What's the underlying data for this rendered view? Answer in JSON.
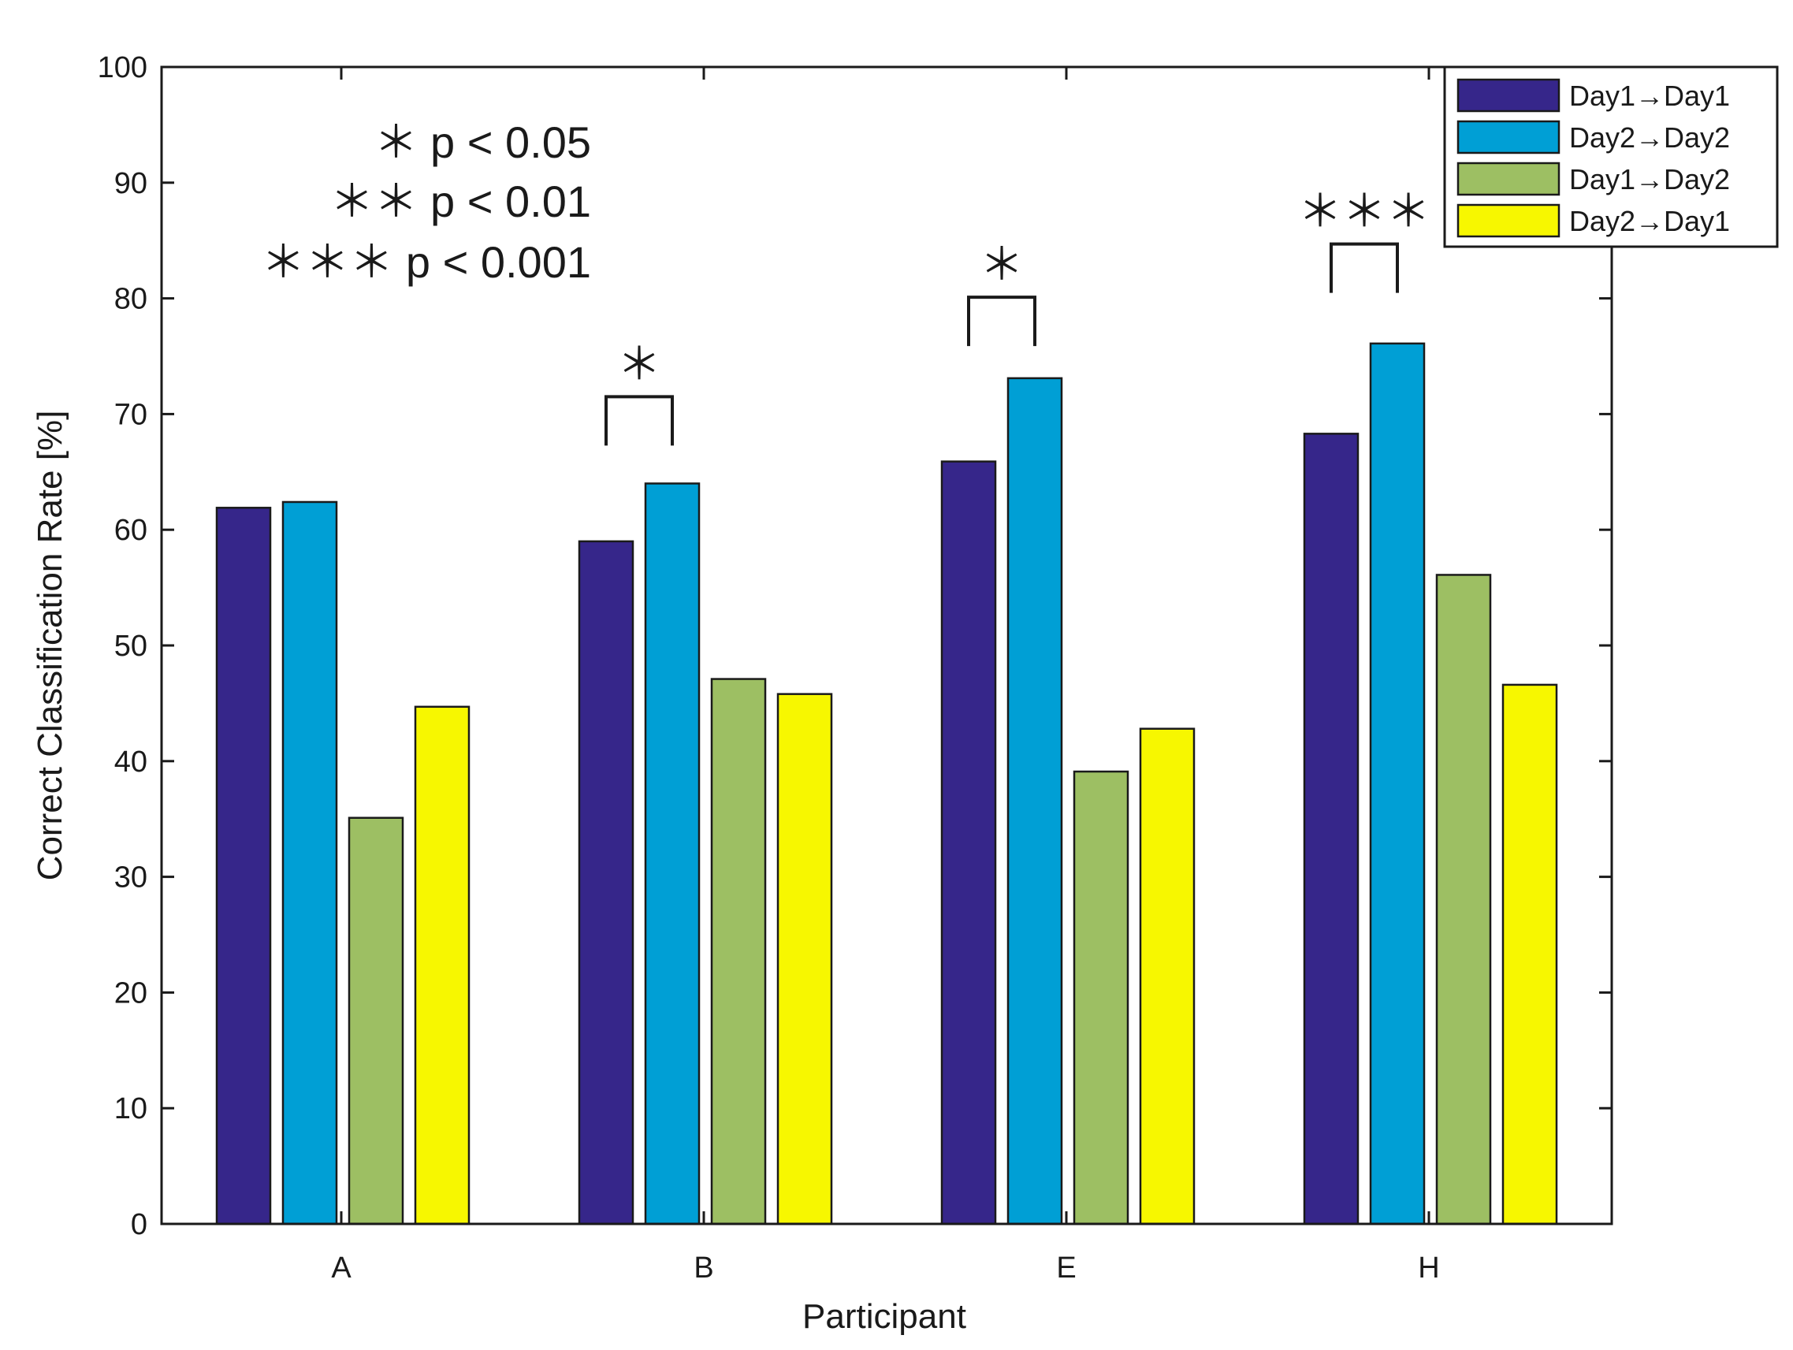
{
  "chart_data": {
    "type": "bar",
    "title": "",
    "xlabel": "Participant",
    "ylabel": "Correct Classification Rate [%]",
    "ylim": [
      0,
      100
    ],
    "yticks": [
      "0",
      "10",
      "20",
      "30",
      "40",
      "50",
      "60",
      "70",
      "80",
      "90",
      "100"
    ],
    "categories": [
      "A",
      "B",
      "E",
      "H"
    ],
    "series": [
      {
        "name": "Day1→Day1",
        "color": "#36268a",
        "values": [
          61.9,
          59.0,
          65.9,
          68.3
        ]
      },
      {
        "name": "Day2→Day2",
        "color": "#009fd5",
        "values": [
          62.4,
          64.0,
          73.1,
          76.1
        ]
      },
      {
        "name": "Day1→Day2",
        "color": "#9dbf63",
        "values": [
          35.1,
          47.1,
          39.1,
          56.1
        ]
      },
      {
        "name": "Day2→Day1",
        "color": "#f7f700",
        "values": [
          44.7,
          45.8,
          42.8,
          46.6
        ]
      }
    ],
    "legend_position": "top-right",
    "significance_legend": [
      {
        "stars": "＊",
        "text": "p < 0.05"
      },
      {
        "stars": "＊＊",
        "text": "p < 0.01"
      },
      {
        "stars": "＊＊＊",
        "text": "p < 0.001"
      }
    ],
    "significance_brackets": [
      {
        "category": "B",
        "series_from": 0,
        "series_to": 1,
        "stars": "＊",
        "level": 71.5
      },
      {
        "category": "E",
        "series_from": 0,
        "series_to": 1,
        "stars": "＊",
        "level": 80.1
      },
      {
        "category": "H",
        "series_from": 0,
        "series_to": 1,
        "stars": "＊＊＊",
        "level": 84.7
      }
    ]
  }
}
